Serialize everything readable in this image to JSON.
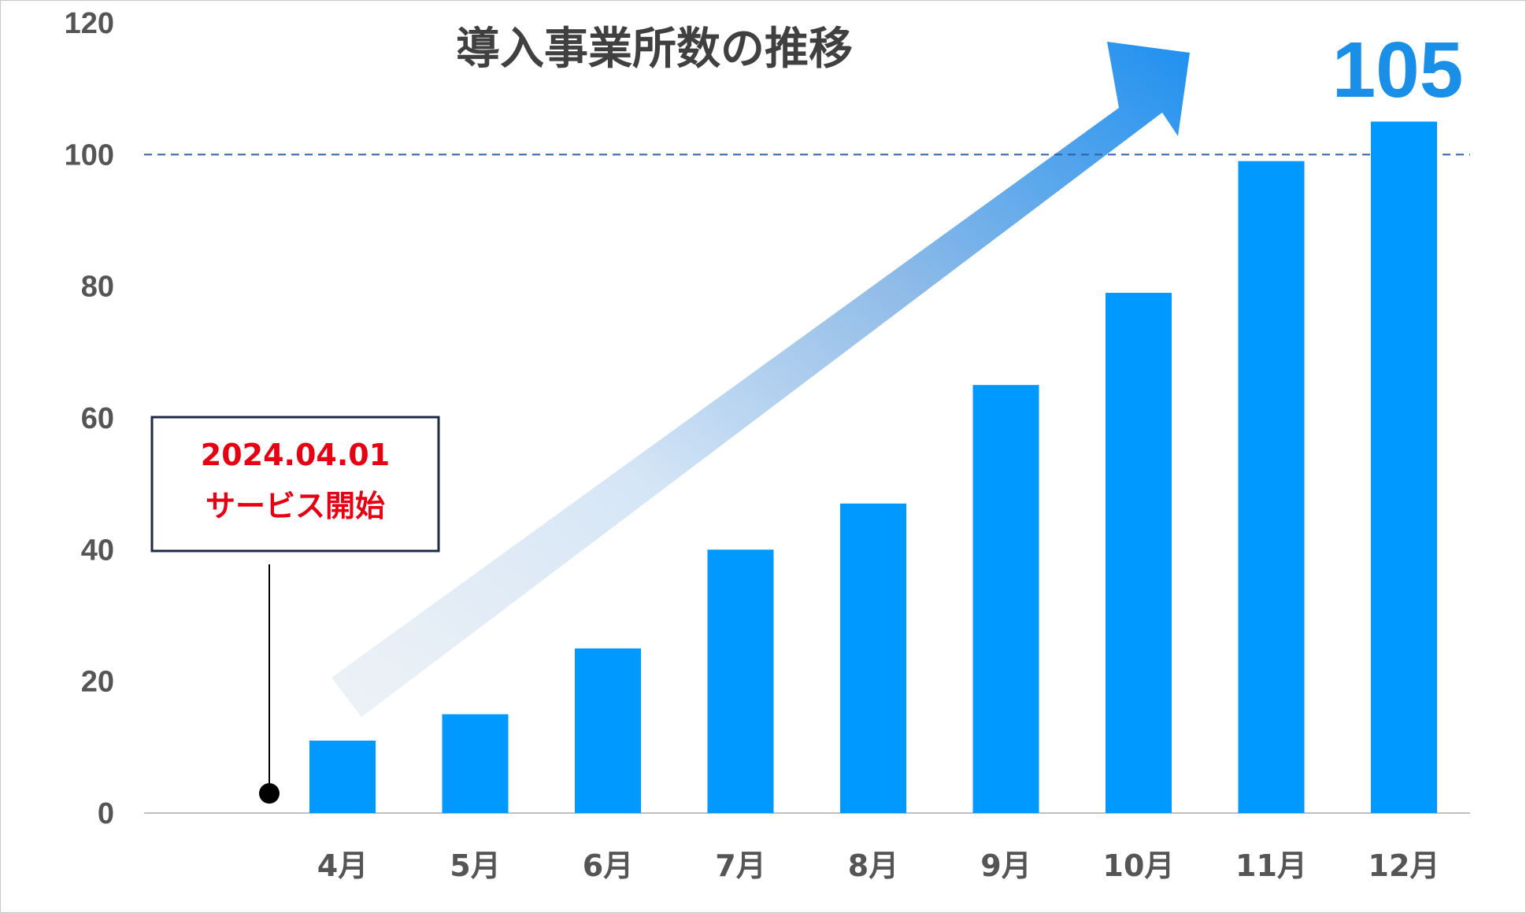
{
  "chart_data": {
    "type": "bar",
    "title": "導入事業所数の推移",
    "categories": [
      "4月",
      "5月",
      "6月",
      "7月",
      "8月",
      "9月",
      "10月",
      "11月",
      "12月"
    ],
    "values": [
      11,
      15,
      25,
      40,
      47,
      65,
      79,
      99,
      105
    ],
    "ylim": [
      0,
      120
    ],
    "yticks": [
      0,
      20,
      40,
      60,
      80,
      100,
      120
    ],
    "reference_line": 100,
    "grid": false,
    "legend": "none",
    "highlight_label": "105",
    "annotation": {
      "date": "2024.04.01",
      "text": "サービス開始"
    },
    "colors": {
      "bar": "#0099ff",
      "highlight_label": "#1a8fe8",
      "reference_line": "#2f5fa8",
      "annotation_text": "#e60012",
      "annotation_border": "#1f2a4a",
      "axis": "#bfbfbf"
    }
  }
}
